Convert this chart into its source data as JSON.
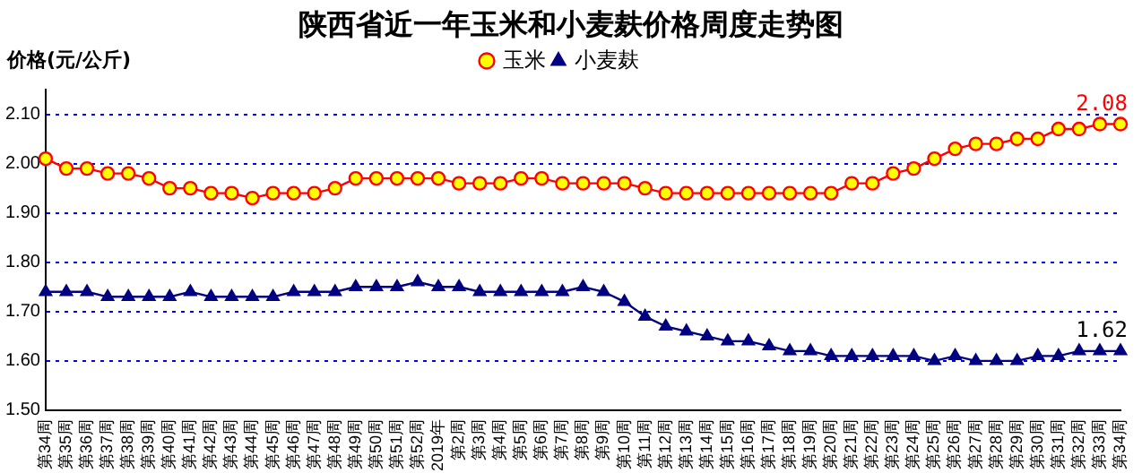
{
  "chart_data": {
    "type": "line",
    "title": "陕西省近一年玉米和小麦麸价格周度走势图",
    "ylabel": "价格(元/公斤)",
    "categories": [
      "第34周",
      "第35周",
      "第36周",
      "第37周",
      "第38周",
      "第39周",
      "第40周",
      "第41周",
      "第42周",
      "第43周",
      "第44周",
      "第45周",
      "第46周",
      "第47周",
      "第48周",
      "第49周",
      "第50周",
      "第51周",
      "第52周",
      "2019年",
      "第2周",
      "第3周",
      "第4周",
      "第5周",
      "第6周",
      "第7周",
      "第8周",
      "第9周",
      "第10周",
      "第11周",
      "第12周",
      "第13周",
      "第14周",
      "第15周",
      "第16周",
      "第17周",
      "第18周",
      "第19周",
      "第20周",
      "第21周",
      "第22周",
      "第23周",
      "第24周",
      "第25周",
      "第26周",
      "第27周",
      "第28周",
      "第29周",
      "第30周",
      "第31周",
      "第32周",
      "第33周",
      "第34周"
    ],
    "series": [
      {
        "name": "玉米",
        "color": "#ff0000",
        "marker": "circle",
        "values": [
          2.01,
          1.99,
          1.99,
          1.98,
          1.98,
          1.97,
          1.95,
          1.95,
          1.94,
          1.94,
          1.93,
          1.94,
          1.94,
          1.94,
          1.95,
          1.97,
          1.97,
          1.97,
          1.97,
          1.97,
          1.96,
          1.96,
          1.96,
          1.97,
          1.97,
          1.96,
          1.96,
          1.96,
          1.96,
          1.95,
          1.94,
          1.94,
          1.94,
          1.94,
          1.94,
          1.94,
          1.94,
          1.94,
          1.94,
          1.96,
          1.96,
          1.98,
          1.99,
          2.01,
          2.03,
          2.04,
          2.04,
          2.05,
          2.05,
          2.07,
          2.07,
          2.08,
          2.08
        ],
        "value_labels": [
          null,
          null,
          null,
          null,
          null,
          null,
          null,
          null,
          null,
          null,
          null,
          null,
          null,
          null,
          null,
          null,
          null,
          null,
          null,
          null,
          null,
          null,
          null,
          null,
          null,
          null,
          null,
          null,
          null,
          null,
          null,
          null,
          null,
          null,
          null,
          null,
          null,
          null,
          null,
          null,
          null,
          null,
          null,
          null,
          null,
          null,
          null,
          null,
          null,
          null,
          null,
          null,
          "2.08"
        ]
      },
      {
        "name": "小麦麸",
        "color": "#000080",
        "marker": "triangle",
        "values": [
          1.74,
          1.74,
          1.74,
          1.73,
          1.73,
          1.73,
          1.73,
          1.74,
          1.73,
          1.73,
          1.73,
          1.73,
          1.74,
          1.74,
          1.74,
          1.75,
          1.75,
          1.75,
          1.76,
          1.75,
          1.75,
          1.74,
          1.74,
          1.74,
          1.74,
          1.74,
          1.75,
          1.74,
          1.72,
          1.69,
          1.67,
          1.66,
          1.65,
          1.64,
          1.64,
          1.63,
          1.62,
          1.62,
          1.61,
          1.61,
          1.61,
          1.61,
          1.61,
          1.6,
          1.61,
          1.6,
          1.6,
          1.6,
          1.61,
          1.61,
          1.62,
          1.62,
          1.62
        ],
        "value_labels": [
          null,
          null,
          null,
          null,
          null,
          null,
          null,
          null,
          null,
          null,
          null,
          null,
          null,
          null,
          null,
          null,
          null,
          null,
          null,
          null,
          null,
          null,
          null,
          null,
          null,
          null,
          null,
          null,
          null,
          null,
          null,
          null,
          null,
          null,
          null,
          null,
          null,
          null,
          null,
          null,
          null,
          null,
          null,
          null,
          null,
          null,
          null,
          null,
          null,
          null,
          null,
          null,
          "1.62"
        ]
      }
    ],
    "ylim": [
      1.5,
      2.15
    ],
    "yticks": [
      {
        "value": 1.5,
        "label": "1.50"
      },
      {
        "value": 1.6,
        "label": "1.60"
      },
      {
        "value": 1.7,
        "label": "1.70"
      },
      {
        "value": 1.8,
        "label": "1.80"
      },
      {
        "value": 1.9,
        "label": "1.90"
      },
      {
        "value": 2.0,
        "label": "2.00"
      },
      {
        "value": 2.1,
        "label": "2.10"
      }
    ],
    "grid": "y",
    "legend": "top",
    "line_style": "solid"
  }
}
